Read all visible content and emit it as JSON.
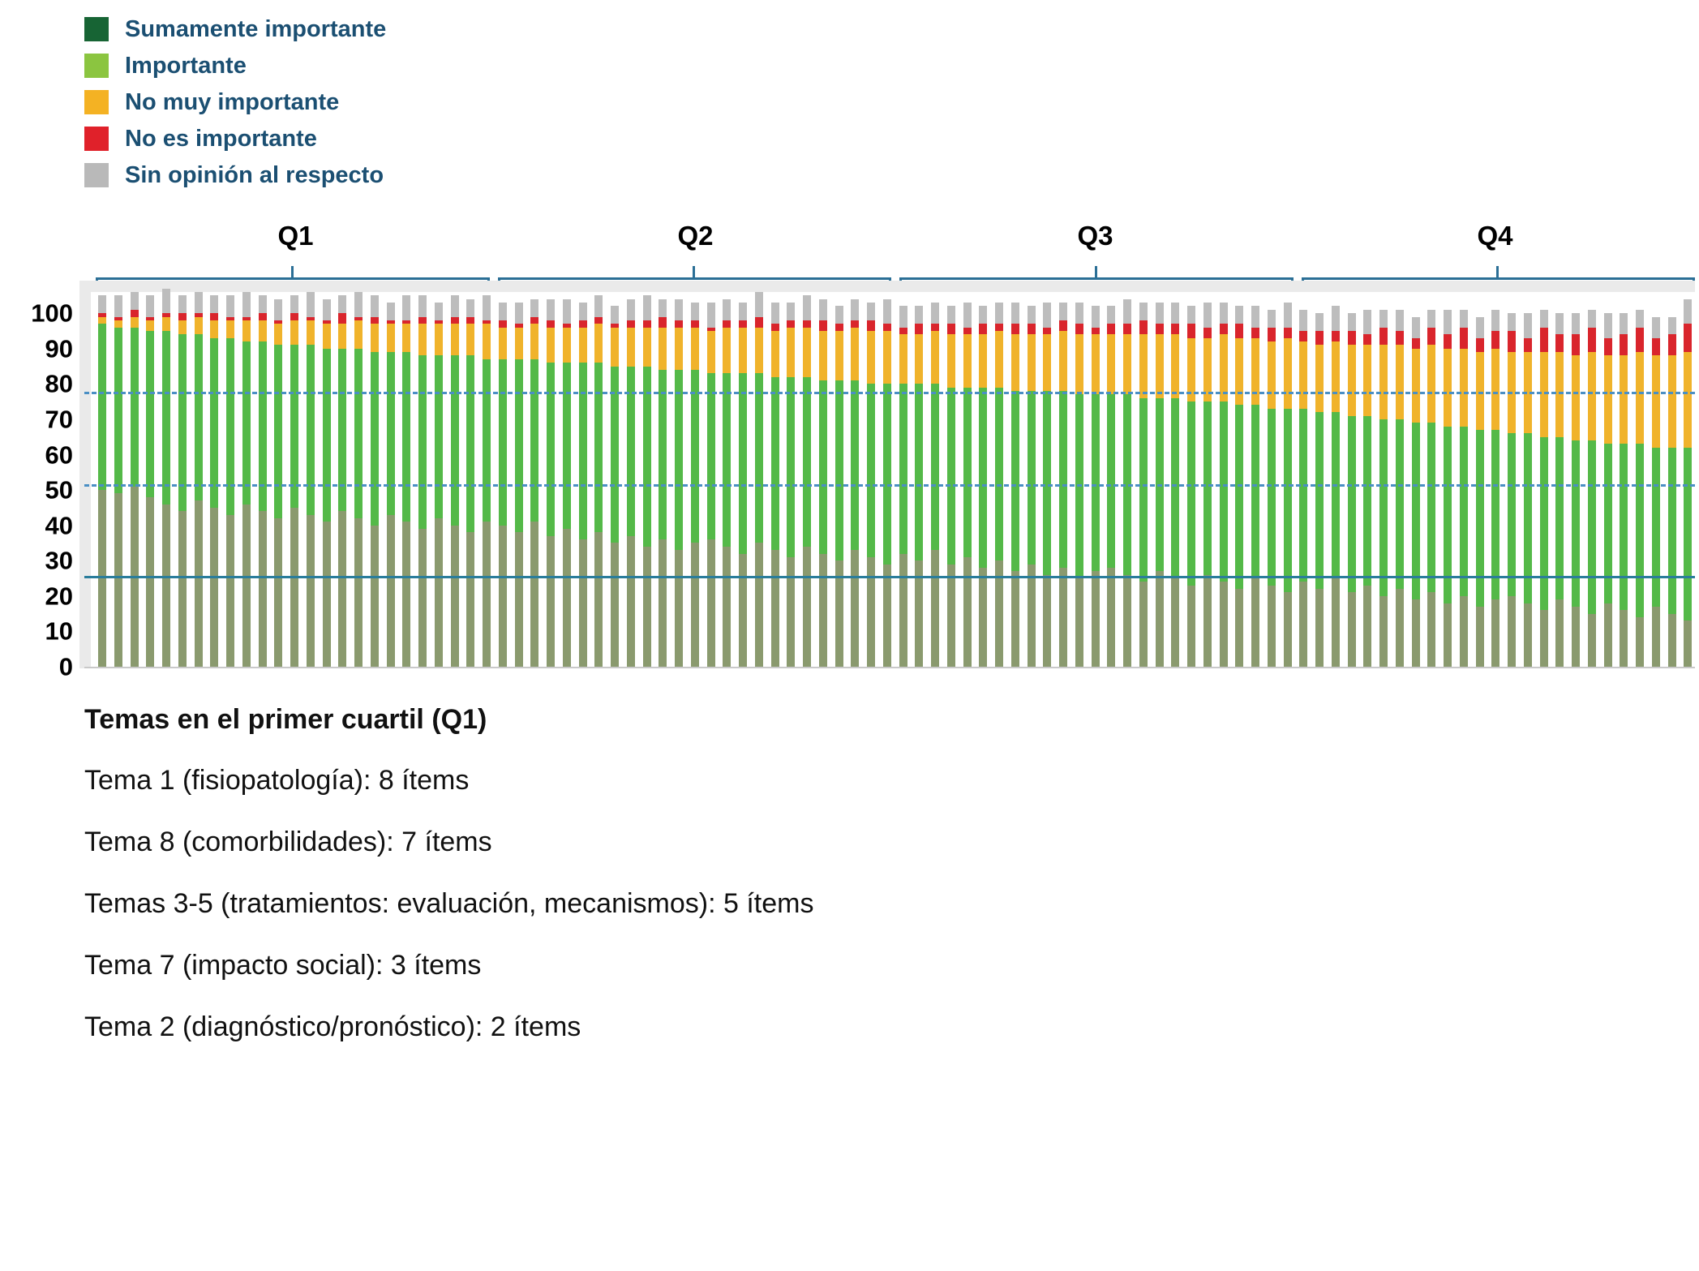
{
  "legend": {
    "text_color": "#1b4f72",
    "items": [
      {
        "label": "Sumamente importante",
        "color": "#176434"
      },
      {
        "label": "Importante",
        "color": "#8bc540"
      },
      {
        "label": "No muy importante",
        "color": "#f4b223"
      },
      {
        "label": "No es importante",
        "color": "#e0212a"
      },
      {
        "label": "Sin opinión al respecto",
        "color": "#b9b9b9"
      }
    ]
  },
  "chart_data": {
    "type": "bar",
    "stacked": true,
    "title": "",
    "xlabel": "",
    "ylabel": "",
    "ylim": [
      0,
      106
    ],
    "yticks": [
      0,
      10,
      20,
      30,
      40,
      50,
      60,
      70,
      80,
      90,
      100
    ],
    "quartiles": [
      "Q1",
      "Q2",
      "Q3",
      "Q4"
    ],
    "items_per_quartile": 25,
    "n_bars": 100,
    "reference_lines": [
      {
        "value": 77,
        "style": "dashed",
        "color": "#4a8fc4"
      },
      {
        "value": 51,
        "style": "dashed",
        "color": "#4a8fc4"
      },
      {
        "value": 25,
        "style": "solid",
        "color": "#2a7d9b"
      }
    ],
    "series": [
      {
        "name": "Sumamente importante",
        "color": "#8a9a6e",
        "values": [
          50,
          49,
          51,
          48,
          46,
          44,
          47,
          45,
          43,
          46,
          44,
          42,
          45,
          43,
          41,
          44,
          42,
          40,
          43,
          41,
          39,
          42,
          40,
          38,
          41,
          40,
          38,
          41,
          37,
          39,
          36,
          38,
          35,
          37,
          34,
          36,
          33,
          35,
          36,
          34,
          32,
          35,
          33,
          31,
          34,
          32,
          30,
          33,
          31,
          29,
          32,
          30,
          33,
          29,
          31,
          28,
          30,
          27,
          29,
          26,
          28,
          25,
          27,
          28,
          26,
          24,
          27,
          25,
          23,
          26,
          24,
          22,
          25,
          23,
          21,
          24,
          22,
          25,
          21,
          23,
          20,
          22,
          19,
          21,
          18,
          20,
          17,
          19,
          20,
          18,
          16,
          19,
          17,
          15,
          18,
          16,
          14,
          17,
          15,
          13
        ]
      },
      {
        "name": "Importante",
        "color": "#54b948",
        "values": [
          47,
          47,
          45,
          47,
          49,
          50,
          47,
          48,
          50,
          46,
          48,
          49,
          46,
          48,
          49,
          46,
          48,
          49,
          46,
          48,
          49,
          46,
          48,
          50,
          46,
          47,
          49,
          46,
          49,
          47,
          50,
          48,
          50,
          48,
          51,
          48,
          51,
          49,
          47,
          49,
          51,
          48,
          49,
          51,
          48,
          49,
          51,
          48,
          49,
          51,
          48,
          50,
          47,
          50,
          48,
          51,
          49,
          51,
          49,
          52,
          50,
          52,
          50,
          49,
          51,
          52,
          49,
          51,
          52,
          49,
          51,
          52,
          49,
          50,
          52,
          49,
          50,
          47,
          50,
          48,
          50,
          48,
          50,
          48,
          50,
          48,
          50,
          48,
          46,
          48,
          49,
          46,
          47,
          49,
          45,
          47,
          49,
          45,
          47,
          49
        ]
      },
      {
        "name": "No muy importante",
        "color": "#f0b32b",
        "values": [
          2,
          2,
          3,
          3,
          4,
          4,
          5,
          5,
          5,
          6,
          6,
          6,
          7,
          7,
          7,
          7,
          8,
          8,
          8,
          8,
          9,
          9,
          9,
          9,
          10,
          9,
          9,
          10,
          10,
          10,
          10,
          11,
          11,
          11,
          11,
          12,
          12,
          12,
          12,
          13,
          13,
          13,
          13,
          14,
          14,
          14,
          14,
          15,
          15,
          15,
          14,
          14,
          15,
          15,
          15,
          15,
          16,
          16,
          16,
          16,
          17,
          17,
          17,
          17,
          17,
          18,
          18,
          18,
          18,
          18,
          19,
          19,
          19,
          19,
          20,
          19,
          19,
          20,
          20,
          20,
          21,
          21,
          21,
          22,
          22,
          22,
          22,
          23,
          23,
          23,
          24,
          24,
          24,
          25,
          25,
          25,
          26,
          26,
          26,
          27
        ]
      },
      {
        "name": "No es importante",
        "color": "#d9252c",
        "values": [
          1,
          1,
          2,
          1,
          1,
          2,
          1,
          2,
          1,
          1,
          2,
          1,
          2,
          1,
          1,
          3,
          1,
          2,
          1,
          1,
          2,
          1,
          2,
          2,
          1,
          2,
          1,
          2,
          2,
          1,
          2,
          2,
          1,
          2,
          2,
          3,
          2,
          2,
          1,
          2,
          2,
          3,
          2,
          2,
          2,
          3,
          2,
          2,
          3,
          2,
          2,
          3,
          2,
          3,
          2,
          3,
          2,
          3,
          3,
          2,
          3,
          3,
          2,
          3,
          3,
          4,
          3,
          3,
          4,
          3,
          3,
          4,
          3,
          4,
          3,
          3,
          4,
          3,
          4,
          3,
          5,
          4,
          3,
          5,
          4,
          6,
          4,
          5,
          6,
          4,
          7,
          5,
          6,
          7,
          5,
          6,
          7,
          5,
          6,
          8
        ]
      },
      {
        "name": "Sin opinión al respecto",
        "color": "#bdbdbd",
        "values": [
          5,
          6,
          5,
          6,
          7,
          5,
          6,
          5,
          6,
          7,
          5,
          6,
          5,
          7,
          6,
          5,
          7,
          6,
          5,
          7,
          6,
          5,
          6,
          5,
          7,
          5,
          6,
          5,
          6,
          7,
          5,
          6,
          5,
          6,
          7,
          5,
          6,
          5,
          7,
          6,
          5,
          7,
          6,
          5,
          7,
          6,
          5,
          6,
          5,
          7,
          6,
          5,
          6,
          5,
          7,
          5,
          6,
          6,
          5,
          7,
          5,
          6,
          6,
          5,
          7,
          5,
          6,
          6,
          5,
          7,
          6,
          5,
          6,
          5,
          7,
          6,
          5,
          7,
          5,
          7,
          5,
          6,
          6,
          5,
          7,
          5,
          6,
          6,
          5,
          7,
          5,
          6,
          6,
          5,
          7,
          6,
          5,
          6,
          5,
          7
        ]
      }
    ]
  },
  "footer": {
    "heading": "Temas en el primer cuartil (Q1)",
    "lines": [
      "Tema 1 (fisiopatología): 8 ítems",
      "Tema 8 (comorbilidades): 7 ítems",
      "Temas 3-5 (tratamientos: evaluación, mecanismos): 5 ítems",
      "Tema 7 (impacto social): 3 ítems",
      "Tema 2 (diagnóstico/pronóstico): 2 ítems"
    ]
  }
}
